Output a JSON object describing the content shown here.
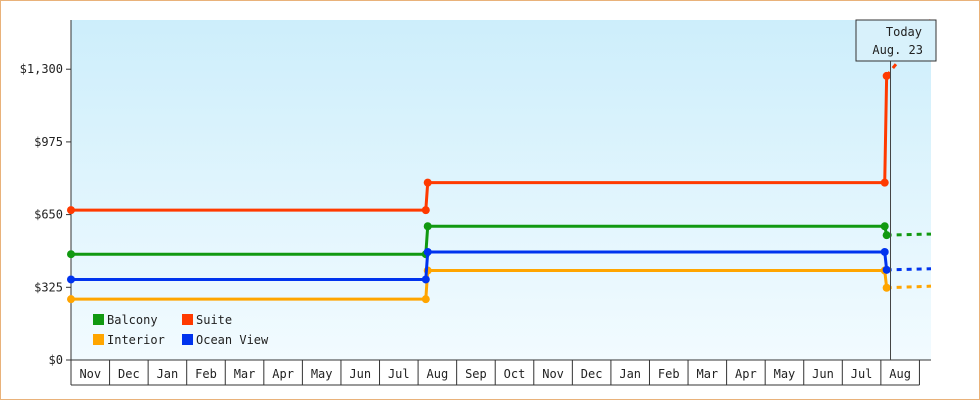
{
  "chart_data": {
    "type": "line",
    "step": true,
    "xlabel": "",
    "ylabel": "",
    "categories": [
      "Nov",
      "Dec",
      "Jan",
      "Feb",
      "Mar",
      "Apr",
      "May",
      "Jun",
      "Jul",
      "Aug",
      "Sep",
      "Oct",
      "Nov",
      "Dec",
      "Jan",
      "Feb",
      "Mar",
      "Apr",
      "May",
      "Jun",
      "Jul",
      "Aug"
    ],
    "yticks": [
      {
        "value": 0,
        "label": "$0"
      },
      {
        "value": 325,
        "label": "$325"
      },
      {
        "value": 650,
        "label": "$650"
      },
      {
        "value": 975,
        "label": "$975"
      },
      {
        "value": 1300,
        "label": "$1,300"
      }
    ],
    "ylim": [
      0,
      1520
    ],
    "xlim": [
      0,
      22.3
    ],
    "grid": false,
    "legend": "bottom-left",
    "annotation": {
      "x": 21.25,
      "line1": "Today",
      "line2": "Aug. 23"
    },
    "series": [
      {
        "name": "Balcony",
        "color": "#119911",
        "points": [
          [
            0,
            473
          ],
          [
            9.2,
            473
          ],
          [
            9.25,
            598
          ],
          [
            21.1,
            598
          ],
          [
            21.15,
            558
          ]
        ],
        "forecast": [
          [
            21.15,
            558
          ],
          [
            22.3,
            563
          ]
        ]
      },
      {
        "name": "Suite",
        "color": "#ff3a00",
        "points": [
          [
            0,
            670
          ],
          [
            9.2,
            670
          ],
          [
            9.25,
            793
          ],
          [
            21.1,
            793
          ],
          [
            21.15,
            1270
          ]
        ],
        "forecast": [
          [
            21.15,
            1270
          ],
          [
            22.3,
            1520
          ]
        ]
      },
      {
        "name": "Interior",
        "color": "#ffa500",
        "points": [
          [
            0,
            272
          ],
          [
            9.2,
            272
          ],
          [
            9.25,
            400
          ],
          [
            21.1,
            400
          ],
          [
            21.15,
            323
          ]
        ],
        "forecast": [
          [
            21.15,
            323
          ],
          [
            22.3,
            330
          ]
        ]
      },
      {
        "name": "Ocean View",
        "color": "#0033ee",
        "points": [
          [
            0,
            360
          ],
          [
            9.2,
            360
          ],
          [
            9.25,
            483
          ],
          [
            21.1,
            483
          ],
          [
            21.15,
            403
          ]
        ],
        "forecast": [
          [
            21.15,
            403
          ],
          [
            22.3,
            408
          ]
        ]
      }
    ]
  }
}
